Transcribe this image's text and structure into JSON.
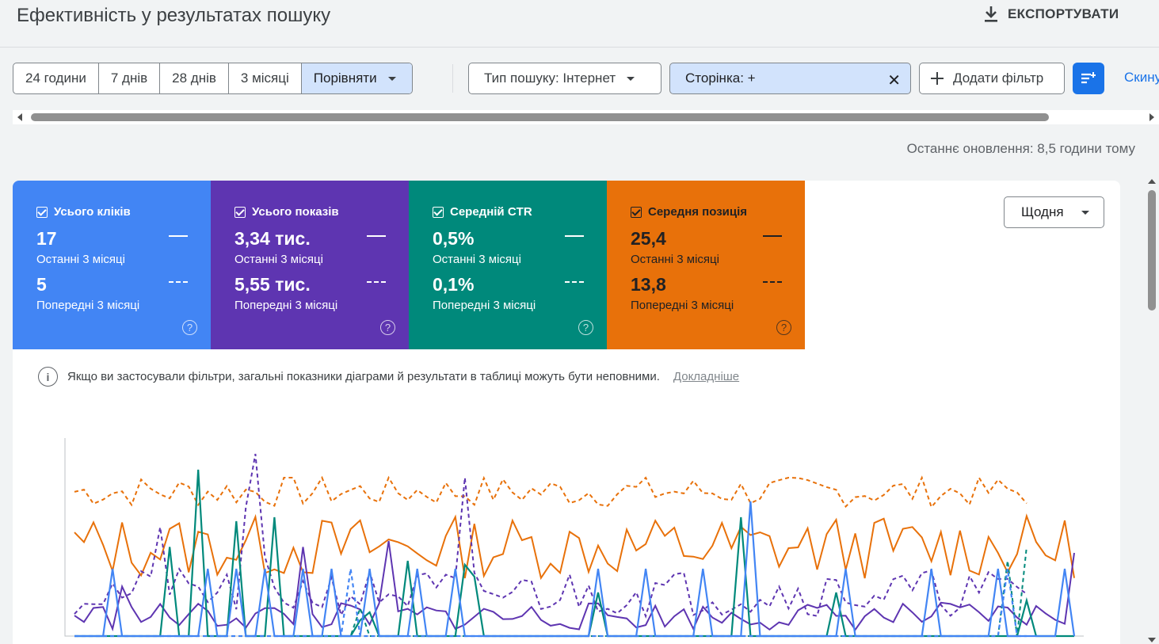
{
  "header": {
    "title": "Ефективність у результатах пошуку",
    "export_label": "ЕКСПОРТУВАТИ"
  },
  "filters": {
    "date_ranges": [
      "24 години",
      "7 днів",
      "28 днів",
      "3 місяці"
    ],
    "compare_label": "Порівняти",
    "search_type": "Тип пошуку: Інтернет",
    "page_filter": "Сторінка: +",
    "add_filter": "Додати фільтр",
    "reset": "Скинути"
  },
  "last_update": "Останнє оновлення: 8,5 години тому",
  "metrics": [
    {
      "label": "Усього кліків",
      "current": "17",
      "current_period": "Останні 3 місяці",
      "previous": "5",
      "previous_period": "Попередні 3 місяці",
      "color": "#4285f4"
    },
    {
      "label": "Усього показів",
      "current": "3,34 тис.",
      "current_period": "Останні 3 місяці",
      "previous": "5,55 тис.",
      "previous_period": "Попередні 3 місяці",
      "color": "#5e35b1"
    },
    {
      "label": "Середній CTR",
      "current": "0,5%",
      "current_period": "Останні 3 місяці",
      "previous": "0,1%",
      "previous_period": "Попередні 3 місяці",
      "color": "#00897b"
    },
    {
      "label": "Середня позиція",
      "current": "25,4",
      "current_period": "Останні 3 місяці",
      "previous": "13,8",
      "previous_period": "Попередні 3 місяці",
      "color": "#e8710a"
    }
  ],
  "granularity": "Щодня",
  "notice": {
    "text": "Якщо ви застосували фільтри, загальні показники діаграми й результати в таблиці можуть бути неповними.",
    "link": "Докладніше"
  },
  "chart_data": {
    "type": "line",
    "ylim": [
      0,
      100
    ],
    "series": [
      {
        "name": "Усього кліків",
        "style": "solid",
        "color": "#4285f4",
        "values": [
          0,
          0,
          0,
          0,
          0,
          0,
          0,
          0,
          0,
          0,
          0,
          0,
          0,
          0,
          0,
          0,
          0,
          0,
          0,
          0,
          0,
          0,
          0,
          0,
          0,
          0,
          0,
          0,
          0,
          0,
          0,
          0,
          0,
          0,
          0,
          0,
          0,
          0,
          0,
          0,
          0,
          0,
          0,
          0,
          0,
          0,
          0,
          0,
          0,
          0,
          0,
          0,
          0,
          0,
          0,
          0,
          0,
          0,
          0,
          0,
          0,
          0,
          0,
          0,
          0,
          0,
          0,
          0,
          0,
          0,
          0,
          0,
          0,
          0,
          0,
          0,
          0,
          0,
          0,
          0,
          0,
          0,
          0,
          0,
          0,
          0,
          0,
          0,
          0,
          0,
          0
        ],
        "spikes": [
          [
            4,
            34
          ],
          [
            14,
            34
          ],
          [
            17,
            34
          ],
          [
            20,
            34
          ],
          [
            24,
            34
          ],
          [
            27,
            34
          ],
          [
            31,
            34
          ],
          [
            36,
            34
          ],
          [
            40,
            34
          ],
          [
            55,
            34
          ],
          [
            60,
            34
          ],
          [
            66,
            34
          ],
          [
            71,
            68
          ],
          [
            81,
            34
          ],
          [
            90,
            34
          ],
          [
            97,
            34
          ],
          [
            104,
            34
          ]
        ]
      },
      {
        "name": "Усього кліків (попередні)",
        "style": "dashed",
        "color": "#4285f4",
        "spikes": [
          [
            29,
            34
          ],
          [
            98,
            34
          ]
        ]
      },
      {
        "name": "Усього показів",
        "style": "solid",
        "color": "#5e35b1"
      },
      {
        "name": "Усього показів (попередні)",
        "style": "dashed",
        "color": "#5e35b1"
      },
      {
        "name": "Середній CTR",
        "style": "solid",
        "color": "#00897b"
      },
      {
        "name": "Середня позиція",
        "style": "solid",
        "color": "#e8710a"
      },
      {
        "name": "Середня позиція (попередні)",
        "style": "dashed",
        "color": "#e8710a"
      }
    ]
  }
}
